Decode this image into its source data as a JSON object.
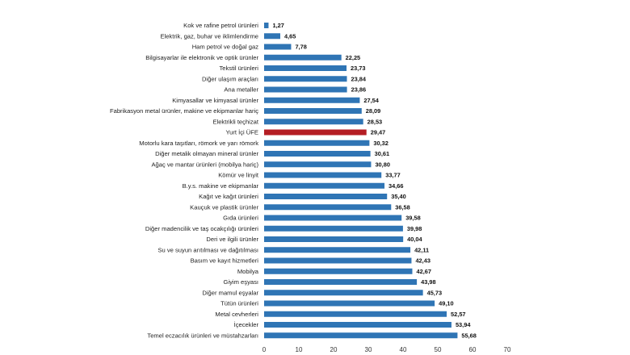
{
  "chart_data": {
    "type": "bar",
    "orientation": "horizontal",
    "title": "",
    "xlabel": "",
    "ylabel": "",
    "xlim": [
      0,
      70
    ],
    "xticks": [
      0,
      10,
      20,
      30,
      40,
      50,
      60,
      70
    ],
    "grid": false,
    "legend": "none",
    "colors": {
      "default": "#2f75b5",
      "highlight": "#b41e24"
    },
    "highlight_category": "Yurt İçi ÜFE",
    "categories": [
      "Kok ve rafine petrol ürünleri",
      "Elektrik, gaz, buhar ve iklimlendirme",
      "Ham petrol ve doğal gaz",
      "Bilgisayarlar ile elektronik ve optik ürünler",
      "Tekstil ürünleri",
      "Diğer ulaşım araçları",
      "Ana metaller",
      "Kimyasallar ve kimyasal ürünler",
      "Fabrikasyon metal ürünler, makine ve ekipmanlar hariç",
      "Elektrikli teçhizat",
      "Yurt İçi ÜFE",
      "Motorlu kara taşıtları, römork ve yarı römork",
      "Diğer metalik olmayan mineral ürünler",
      "Ağaç ve mantar ürünleri (mobilya hariç)",
      "Kömür ve linyit",
      "B.y.s. makine ve ekipmanlar",
      "Kağıt ve kağıt ürünleri",
      "Kauçuk ve plastik ürünler",
      "Gıda ürünleri",
      "Diğer madencilik ve taş ocakçılığı ürünleri",
      "Deri ve ilgili ürünler",
      "Su ve suyun arıtılması ve dağıtılması",
      "Basım ve kayıt hizmetleri",
      "Mobilya",
      "Giyim eşyası",
      "Diğer mamul eşyalar",
      "Tütün ürünleri",
      "Metal cevherleri",
      "İçecekler",
      "Temel eczacılık ürünleri ve müstahzarları"
    ],
    "values": [
      1.27,
      4.65,
      7.78,
      22.25,
      23.73,
      23.84,
      23.86,
      27.54,
      28.09,
      28.53,
      29.47,
      30.32,
      30.61,
      30.8,
      33.77,
      34.66,
      35.4,
      36.58,
      39.58,
      39.98,
      40.04,
      42.11,
      42.43,
      42.67,
      43.98,
      45.73,
      49.1,
      52.57,
      53.94,
      55.68
    ],
    "value_labels": [
      "1,27",
      "4,65",
      "7,78",
      "22,25",
      "23,73",
      "23,84",
      "23,86",
      "27,54",
      "28,09",
      "28,53",
      "29,47",
      "30,32",
      "30,61",
      "30,80",
      "33,77",
      "34,66",
      "35,40",
      "36,58",
      "39,58",
      "39,98",
      "40,04",
      "42,11",
      "42,43",
      "42,67",
      "43,98",
      "45,73",
      "49,10",
      "52,57",
      "53,94",
      "55,68"
    ]
  }
}
